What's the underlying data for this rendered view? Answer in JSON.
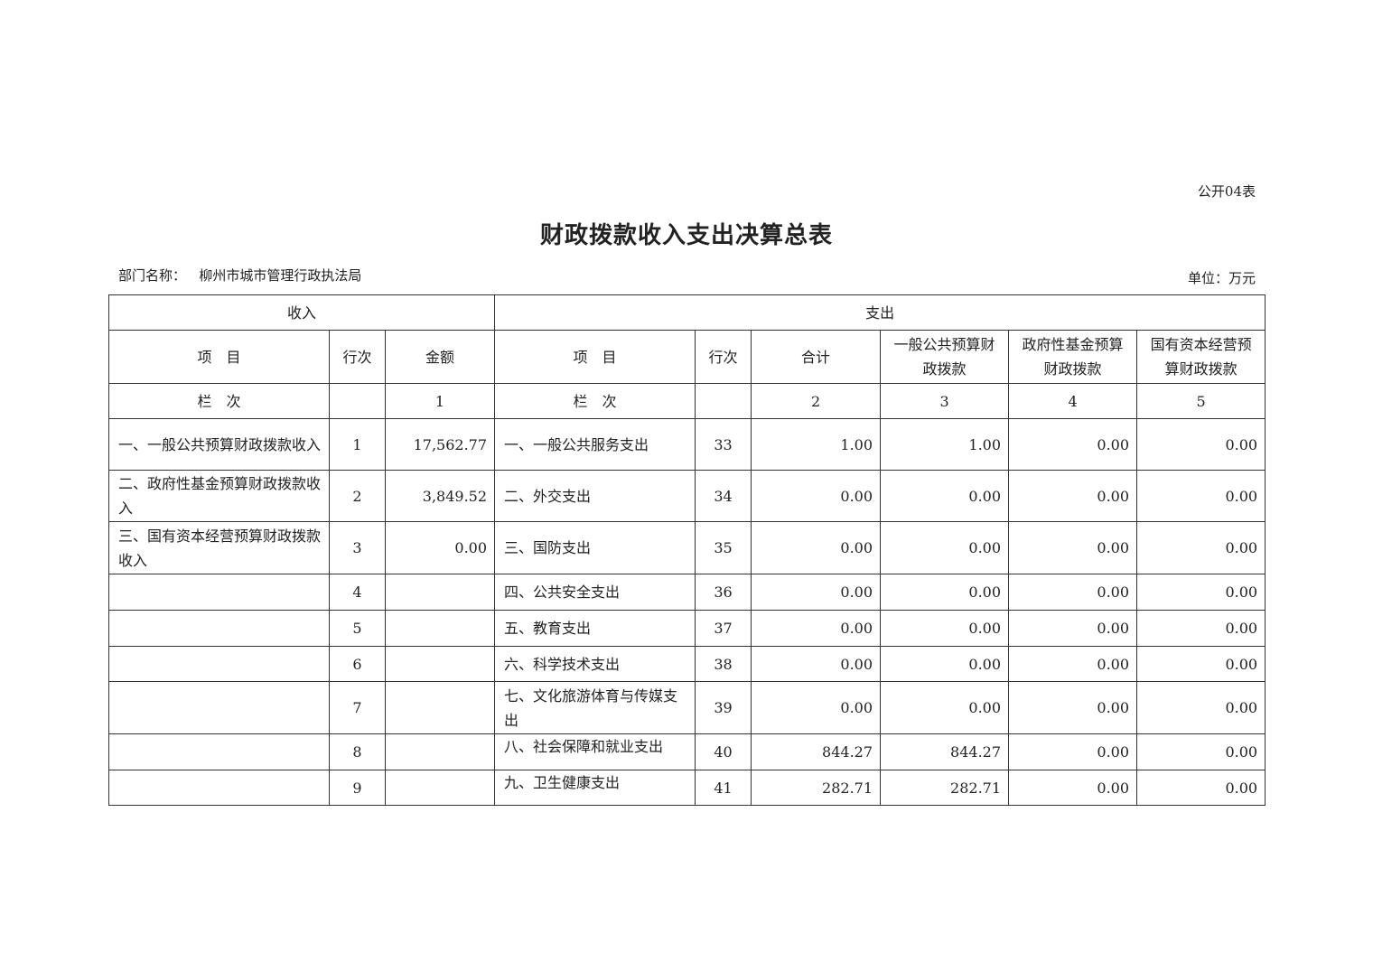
{
  "form_no": "公开04表",
  "title": "财政拨款收入支出决算总表",
  "dept_label": "部门名称：",
  "dept_name": "柳州市城市管理行政执法局",
  "unit": "单位：万元",
  "header": {
    "income": "收入",
    "expense": "支出",
    "item": "项　目",
    "row_no": "行次",
    "amount": "金额",
    "total": "合计",
    "general": "一般公共预算财政拨款",
    "fund": "政府性基金预算财政拨款",
    "state": "国有资本经营预算财政拨款",
    "column_label": "栏　次",
    "col1": "1",
    "col2": "2",
    "col3": "3",
    "col4": "4",
    "col5": "5"
  },
  "rows": [
    {
      "in_item": "一、一般公共预算财政拨款收入",
      "in_no": "1",
      "in_amount": "17,562.77",
      "ex_item": "一、一般公共服务支出",
      "ex_no": "33",
      "total": "1.00",
      "general": "1.00",
      "fund": "0.00",
      "state": "0.00"
    },
    {
      "in_item": "二、政府性基金预算财政拨款收入",
      "in_no": "2",
      "in_amount": "3,849.52",
      "ex_item": "二、外交支出",
      "ex_no": "34",
      "total": "0.00",
      "general": "0.00",
      "fund": "0.00",
      "state": "0.00"
    },
    {
      "in_item": "三、国有资本经营预算财政拨款收入",
      "in_no": "3",
      "in_amount": "0.00",
      "ex_item": "三、国防支出",
      "ex_no": "35",
      "total": "0.00",
      "general": "0.00",
      "fund": "0.00",
      "state": "0.00"
    },
    {
      "in_item": "",
      "in_no": "4",
      "in_amount": "",
      "ex_item": "四、公共安全支出",
      "ex_no": "36",
      "total": "0.00",
      "general": "0.00",
      "fund": "0.00",
      "state": "0.00"
    },
    {
      "in_item": "",
      "in_no": "5",
      "in_amount": "",
      "ex_item": "五、教育支出",
      "ex_no": "37",
      "total": "0.00",
      "general": "0.00",
      "fund": "0.00",
      "state": "0.00"
    },
    {
      "in_item": "",
      "in_no": "6",
      "in_amount": "",
      "ex_item": "六、科学技术支出",
      "ex_no": "38",
      "total": "0.00",
      "general": "0.00",
      "fund": "0.00",
      "state": "0.00"
    },
    {
      "in_item": "",
      "in_no": "7",
      "in_amount": "",
      "ex_item": "七、文化旅游体育与传媒支出",
      "ex_no": "39",
      "total": "0.00",
      "general": "0.00",
      "fund": "0.00",
      "state": "0.00"
    },
    {
      "in_item": "",
      "in_no": "8",
      "in_amount": "",
      "ex_item": "八、社会保障和就业支出",
      "ex_no": "40",
      "total": "844.27",
      "general": "844.27",
      "fund": "0.00",
      "state": "0.00"
    },
    {
      "in_item": "",
      "in_no": "9",
      "in_amount": "",
      "ex_item": "九、卫生健康支出",
      "ex_no": "41",
      "total": "282.71",
      "general": "282.71",
      "fund": "0.00",
      "state": "0.00"
    }
  ]
}
